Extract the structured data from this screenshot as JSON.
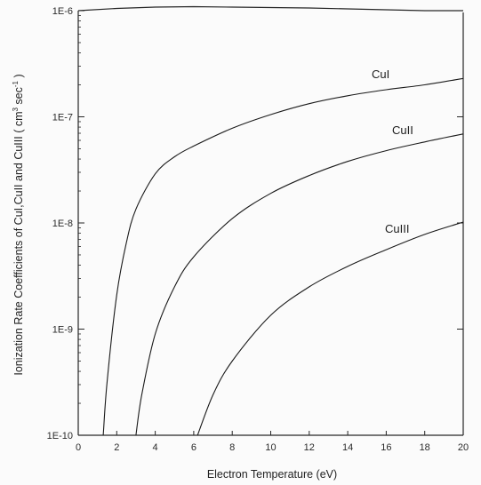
{
  "chart_data": {
    "type": "line",
    "title": "",
    "xlabel": "Electron Temperature (eV)",
    "ylabel_prefix": "Ionization Rate Coefficients of CuI,CuII and CuIII  ( cm",
    "ylabel_exp1": "3",
    "ylabel_mid": " sec",
    "ylabel_exp2": "-1",
    "ylabel_suffix": " )",
    "xlim": [
      0,
      20
    ],
    "ylim": [
      1e-10,
      1e-06
    ],
    "yscale": "log",
    "grid": false,
    "x_ticks": [
      0,
      2,
      4,
      6,
      8,
      10,
      12,
      14,
      16,
      18,
      20
    ],
    "x_tick_labels": [
      "0",
      "2",
      "4",
      "6",
      "8",
      "10",
      "12",
      "14",
      "16",
      "18",
      "20"
    ],
    "y_ticks": [
      1e-10,
      1e-09,
      1e-08,
      1e-07,
      1e-06
    ],
    "y_tick_labels": [
      "1E-10",
      "1E-9",
      "1E-8",
      "1E-7",
      "1E-6"
    ],
    "series": [
      {
        "name": "CuI",
        "x": [
          1.3,
          1.5,
          2.0,
          2.5,
          3.0,
          4.0,
          5.0,
          6.0,
          8.0,
          10.0,
          12.0,
          14.0,
          16.0,
          18.0,
          20.0
        ],
        "y": [
          1e-10,
          3.2e-10,
          2.1e-09,
          6.5e-09,
          1.35e-08,
          2.9e-08,
          4.2e-08,
          5.3e-08,
          7.8e-08,
          1.05e-07,
          1.33e-07,
          1.58e-07,
          1.8e-07,
          2e-07,
          2.3e-07
        ]
      },
      {
        "name": "CuII",
        "x": [
          3.0,
          3.3,
          4.0,
          5.0,
          6.0,
          8.0,
          10.0,
          12.0,
          14.0,
          16.0,
          18.0,
          20.0
        ],
        "y": [
          1e-10,
          2.4e-10,
          9e-10,
          2.5e-09,
          4.8e-09,
          1.1e-08,
          1.9e-08,
          2.8e-08,
          3.8e-08,
          4.8e-08,
          5.8e-08,
          6.9e-08
        ]
      },
      {
        "name": "CuIII",
        "x": [
          6.2,
          7.0,
          8.0,
          10.0,
          12.0,
          14.0,
          16.0,
          18.0,
          20.0
        ],
        "y": [
          1e-10,
          2.4e-10,
          5e-10,
          1.35e-09,
          2.5e-09,
          3.9e-09,
          5.6e-09,
          7.8e-09,
          1.02e-08
        ]
      }
    ],
    "upper_border": {
      "x": [
        0,
        2,
        4,
        6,
        8,
        10,
        12,
        14,
        16,
        18,
        20
      ],
      "y": [
        1e-06,
        1.05e-06,
        1.08e-06,
        1.09e-06,
        1.08e-06,
        1.07e-06,
        1.06e-06,
        1.04e-06,
        1.02e-06,
        1e-06,
        1e-06
      ]
    },
    "colors": {
      "line": "#1a1a1a",
      "axis": "#262626",
      "background": "#fbfbfb"
    }
  }
}
